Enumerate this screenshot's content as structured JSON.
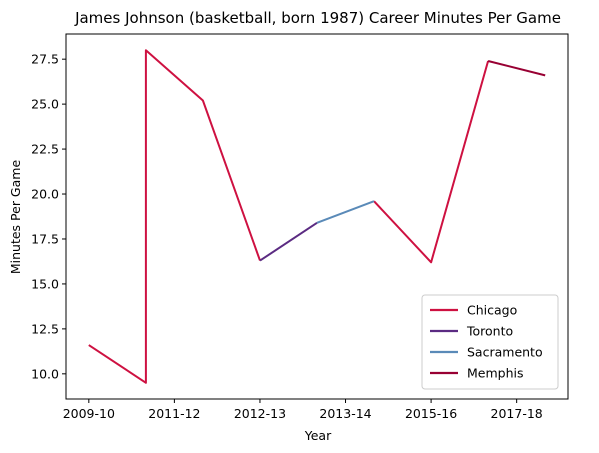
{
  "chart_data": {
    "type": "line",
    "title": "James Johnson (basketball, born 1987) Career Minutes Per Game",
    "xlabel": "Year",
    "ylabel": "Minutes Per Game",
    "x_tick_labels": [
      "2009-10",
      "2011-12",
      "2012-13",
      "2013-14",
      "2015-16",
      "2017-18"
    ],
    "x_tick_positions": [
      0,
      1.5,
      3,
      4.5,
      6,
      7.5
    ],
    "xlim": [
      -0.4,
      8.4
    ],
    "ylim": [
      8.6,
      28.9
    ],
    "y_ticks": [
      10.0,
      12.5,
      15.0,
      17.5,
      20.0,
      22.5,
      25.0,
      27.5
    ],
    "y_tick_labels": [
      "10.0",
      "12.5",
      "15.0",
      "17.5",
      "20.0",
      "22.5",
      "25.0",
      "27.5"
    ],
    "grid": false,
    "legend_position": "lower-right",
    "series": [
      {
        "name": "Chicago",
        "color": "#ce1141",
        "segments": [
          [
            [
              0,
              11.6
            ],
            [
              1,
              9.5
            ],
            [
              1,
              28.0
            ],
            [
              2,
              25.2
            ],
            [
              3,
              16.3
            ]
          ],
          [
            [
              5,
              19.6
            ],
            [
              6,
              16.2
            ],
            [
              7,
              27.4
            ]
          ]
        ]
      },
      {
        "name": "Toronto",
        "color": "#5b2b82",
        "segments": [
          [
            [
              3,
              16.3
            ],
            [
              4,
              18.4
            ]
          ]
        ]
      },
      {
        "name": "Sacramento",
        "color": "#5a8ab8",
        "segments": [
          [
            [
              4,
              18.4
            ],
            [
              5,
              19.6
            ]
          ]
        ]
      },
      {
        "name": "Memphis",
        "color": "#980033",
        "segments": [
          [
            [
              7,
              27.4
            ],
            [
              8,
              26.6
            ]
          ]
        ]
      }
    ]
  }
}
